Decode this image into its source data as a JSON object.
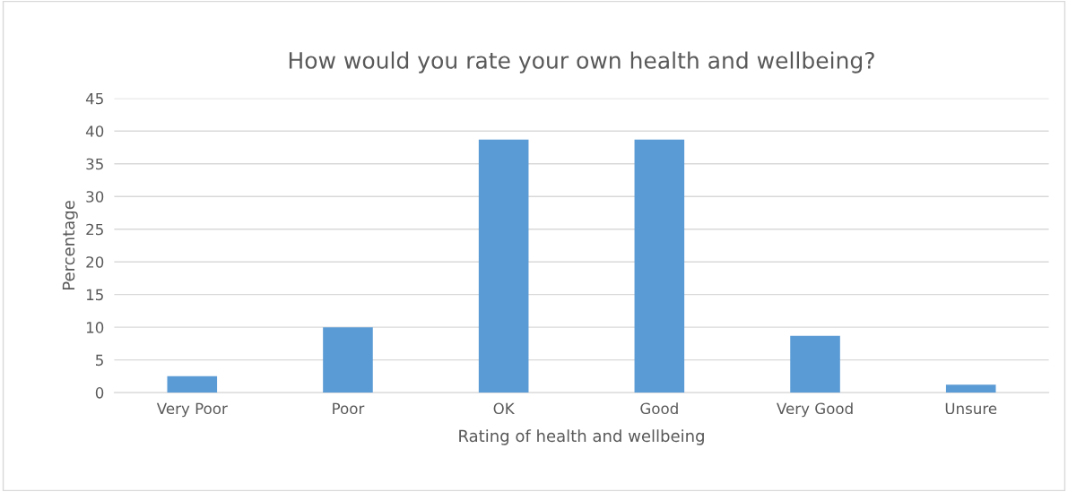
{
  "chart_data": {
    "type": "bar",
    "title": "How would you rate your own health and wellbeing?",
    "xlabel": "Rating of health and wellbeing",
    "ylabel": "Percentage",
    "categories": [
      "Very Poor",
      "Poor",
      "OK",
      "Good",
      "Very Good",
      "Unsure"
    ],
    "values": [
      2.5,
      10,
      38.7,
      38.7,
      8.7,
      1.2
    ],
    "color": "#5b9bd5",
    "ylim": [
      0,
      45
    ],
    "yticks": [
      0,
      5,
      10,
      15,
      20,
      25,
      30,
      35,
      40,
      45
    ],
    "grid": "y"
  }
}
